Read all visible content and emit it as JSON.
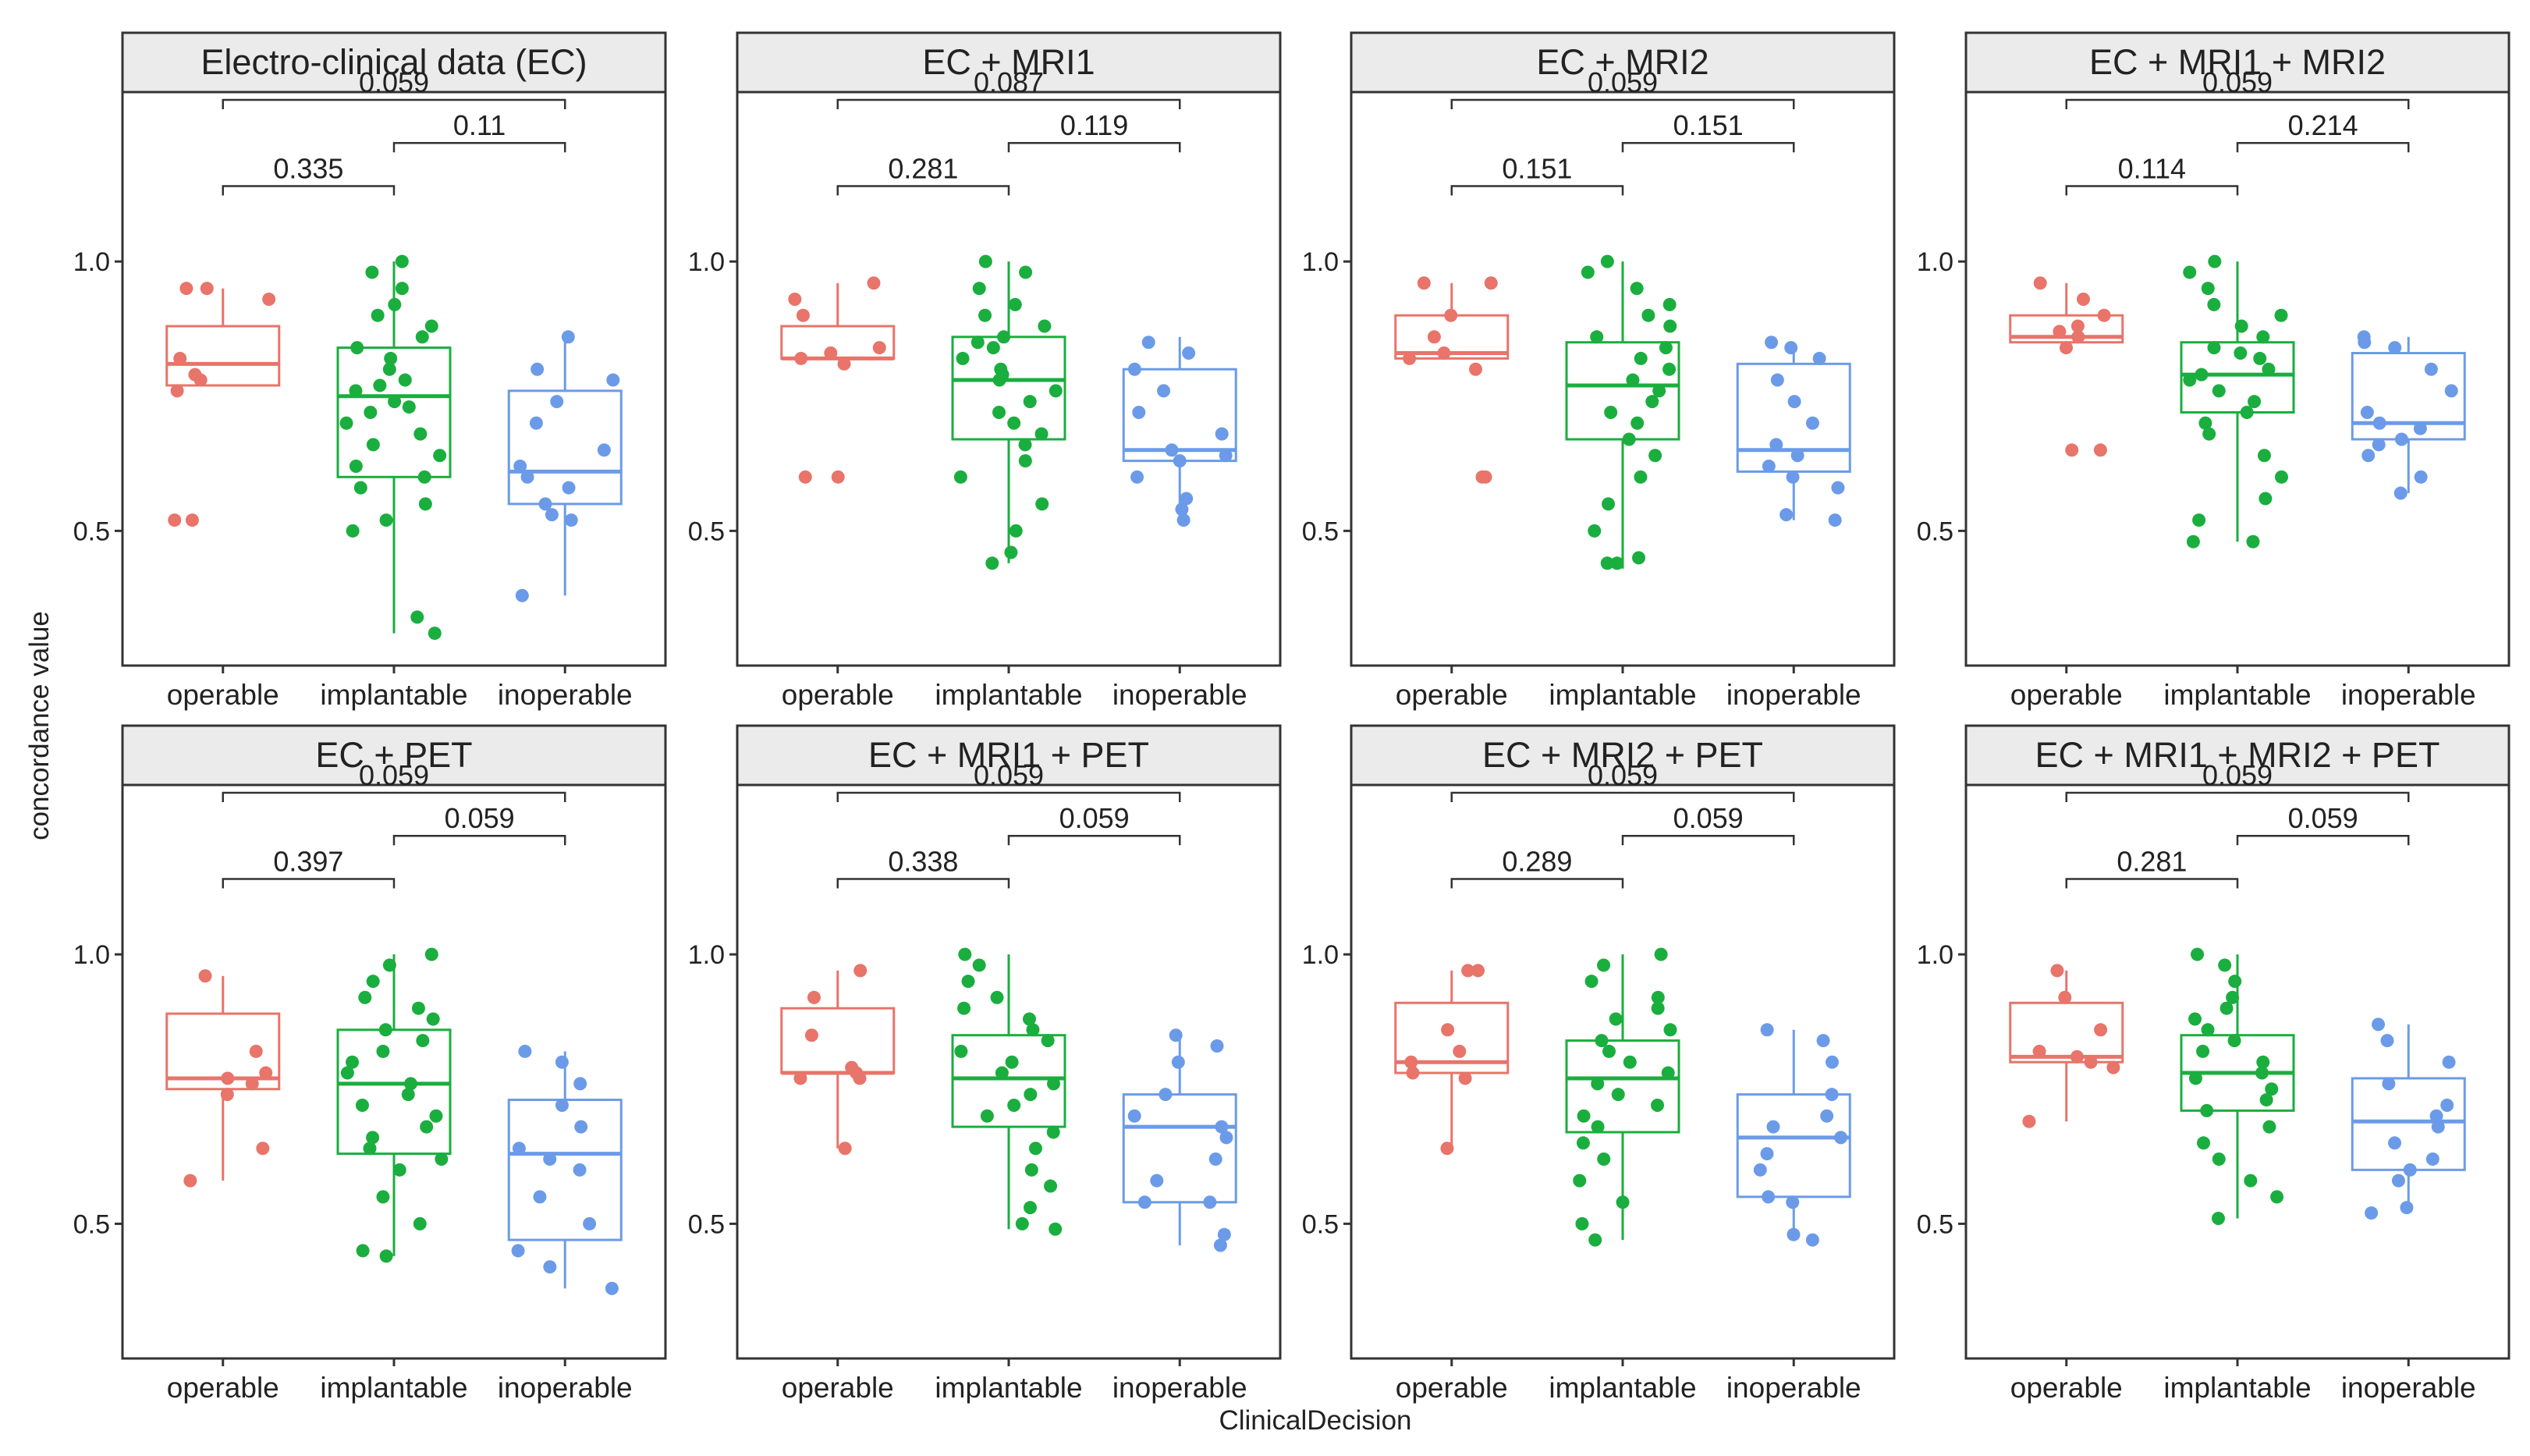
{
  "colors": {
    "operable": "#E8746A",
    "implantable": "#1AAE3E",
    "inoperable": "#6B9BE8",
    "strip_fill": "#EBEBEB",
    "frame": "#333333"
  },
  "chart_data": {
    "type": "box",
    "xlabel": "ClinicalDecision",
    "ylabel": "concordance value",
    "ylim": [
      0.25,
      1.3
    ],
    "yticks": [
      0.5,
      1.0
    ],
    "ytick_labels": [
      "0.5",
      "1.0"
    ],
    "categories": [
      "operable",
      "implantable",
      "inoperable"
    ],
    "comparisons": [
      {
        "from": "operable",
        "to": "implantable"
      },
      {
        "from": "implantable",
        "to": "inoperable"
      },
      {
        "from": "operable",
        "to": "inoperable"
      }
    ],
    "panels": [
      {
        "title": "Electro-clinical data (EC)",
        "pvalues": [
          "0.335",
          "0.11",
          "0.059"
        ],
        "boxes": [
          {
            "category": "operable",
            "min": 0.77,
            "q1": 0.77,
            "median": 0.81,
            "q3": 0.88,
            "max": 0.95,
            "points": [
              0.52,
              0.52,
              0.76,
              0.78,
              0.79,
              0.82,
              0.93,
              0.95,
              0.95
            ]
          },
          {
            "category": "implantable",
            "min": 0.31,
            "q1": 0.6,
            "median": 0.75,
            "q3": 0.84,
            "max": 1.0,
            "points": [
              0.31,
              0.34,
              0.5,
              0.52,
              0.55,
              0.58,
              0.6,
              0.62,
              0.64,
              0.66,
              0.68,
              0.7,
              0.72,
              0.73,
              0.74,
              0.76,
              0.77,
              0.78,
              0.8,
              0.82,
              0.84,
              0.86,
              0.88,
              0.9,
              0.92,
              0.95,
              0.98,
              1.0
            ]
          },
          {
            "category": "inoperable",
            "min": 0.38,
            "q1": 0.55,
            "median": 0.61,
            "q3": 0.76,
            "max": 0.86,
            "points": [
              0.38,
              0.52,
              0.53,
              0.55,
              0.58,
              0.6,
              0.62,
              0.65,
              0.7,
              0.74,
              0.78,
              0.8,
              0.86
            ]
          }
        ]
      },
      {
        "title": "EC + MRI1",
        "pvalues": [
          "0.281",
          "0.119",
          "0.087"
        ],
        "boxes": [
          {
            "category": "operable",
            "min": 0.82,
            "q1": 0.82,
            "median": 0.82,
            "q3": 0.88,
            "max": 0.96,
            "points": [
              0.6,
              0.6,
              0.81,
              0.82,
              0.83,
              0.84,
              0.9,
              0.93,
              0.96
            ]
          },
          {
            "category": "implantable",
            "min": 0.44,
            "q1": 0.67,
            "median": 0.78,
            "q3": 0.86,
            "max": 1.0,
            "points": [
              0.44,
              0.46,
              0.5,
              0.55,
              0.6,
              0.63,
              0.66,
              0.68,
              0.7,
              0.72,
              0.74,
              0.76,
              0.78,
              0.79,
              0.8,
              0.82,
              0.84,
              0.85,
              0.86,
              0.88,
              0.9,
              0.92,
              0.95,
              0.98,
              1.0
            ]
          },
          {
            "category": "inoperable",
            "min": 0.52,
            "q1": 0.63,
            "median": 0.65,
            "q3": 0.8,
            "max": 0.86,
            "points": [
              0.52,
              0.54,
              0.56,
              0.6,
              0.63,
              0.64,
              0.65,
              0.68,
              0.72,
              0.76,
              0.8,
              0.83,
              0.85
            ]
          }
        ]
      },
      {
        "title": "EC + MRI2",
        "pvalues": [
          "0.151",
          "0.151",
          "0.059"
        ],
        "boxes": [
          {
            "category": "operable",
            "min": 0.82,
            "q1": 0.82,
            "median": 0.83,
            "q3": 0.9,
            "max": 0.96,
            "points": [
              0.6,
              0.6,
              0.8,
              0.82,
              0.83,
              0.86,
              0.9,
              0.96,
              0.96
            ]
          },
          {
            "category": "implantable",
            "min": 0.43,
            "q1": 0.67,
            "median": 0.77,
            "q3": 0.85,
            "max": 1.0,
            "points": [
              0.44,
              0.44,
              0.45,
              0.5,
              0.55,
              0.6,
              0.64,
              0.67,
              0.7,
              0.72,
              0.74,
              0.76,
              0.78,
              0.8,
              0.82,
              0.84,
              0.86,
              0.88,
              0.9,
              0.92,
              0.95,
              0.98,
              1.0
            ]
          },
          {
            "category": "inoperable",
            "min": 0.52,
            "q1": 0.61,
            "median": 0.65,
            "q3": 0.81,
            "max": 0.85,
            "points": [
              0.52,
              0.53,
              0.58,
              0.6,
              0.62,
              0.64,
              0.66,
              0.7,
              0.74,
              0.78,
              0.82,
              0.84,
              0.85
            ]
          }
        ]
      },
      {
        "title": "EC + MRI1 + MRI2",
        "pvalues": [
          "0.114",
          "0.214",
          "0.059"
        ],
        "boxes": [
          {
            "category": "operable",
            "min": 0.85,
            "q1": 0.85,
            "median": 0.86,
            "q3": 0.9,
            "max": 0.96,
            "points": [
              0.65,
              0.65,
              0.84,
              0.86,
              0.87,
              0.88,
              0.9,
              0.93,
              0.96
            ]
          },
          {
            "category": "implantable",
            "min": 0.48,
            "q1": 0.72,
            "median": 0.79,
            "q3": 0.85,
            "max": 1.0,
            "points": [
              0.48,
              0.48,
              0.52,
              0.56,
              0.6,
              0.64,
              0.68,
              0.7,
              0.72,
              0.74,
              0.76,
              0.78,
              0.79,
              0.8,
              0.82,
              0.83,
              0.84,
              0.86,
              0.88,
              0.9,
              0.92,
              0.95,
              0.98,
              1.0
            ]
          },
          {
            "category": "inoperable",
            "min": 0.57,
            "q1": 0.67,
            "median": 0.7,
            "q3": 0.83,
            "max": 0.86,
            "points": [
              0.57,
              0.6,
              0.64,
              0.66,
              0.67,
              0.69,
              0.7,
              0.72,
              0.76,
              0.8,
              0.84,
              0.85,
              0.86
            ]
          }
        ]
      },
      {
        "title": "EC + PET",
        "pvalues": [
          "0.397",
          "0.059",
          "0.059"
        ],
        "boxes": [
          {
            "category": "operable",
            "min": 0.58,
            "q1": 0.75,
            "median": 0.77,
            "q3": 0.89,
            "max": 0.96,
            "points": [
              0.58,
              0.64,
              0.74,
              0.76,
              0.77,
              0.78,
              0.82,
              0.96
            ]
          },
          {
            "category": "implantable",
            "min": 0.44,
            "q1": 0.63,
            "median": 0.76,
            "q3": 0.86,
            "max": 1.0,
            "points": [
              0.44,
              0.45,
              0.5,
              0.55,
              0.6,
              0.62,
              0.64,
              0.66,
              0.68,
              0.7,
              0.72,
              0.74,
              0.76,
              0.78,
              0.8,
              0.82,
              0.84,
              0.86,
              0.88,
              0.9,
              0.92,
              0.95,
              0.98,
              1.0
            ]
          },
          {
            "category": "inoperable",
            "min": 0.38,
            "q1": 0.47,
            "median": 0.63,
            "q3": 0.73,
            "max": 0.82,
            "points": [
              0.38,
              0.42,
              0.45,
              0.5,
              0.55,
              0.6,
              0.62,
              0.64,
              0.68,
              0.72,
              0.76,
              0.8,
              0.82
            ]
          }
        ]
      },
      {
        "title": "EC + MRI1 + PET",
        "pvalues": [
          "0.338",
          "0.059",
          "0.059"
        ],
        "boxes": [
          {
            "category": "operable",
            "min": 0.64,
            "q1": 0.78,
            "median": 0.78,
            "q3": 0.9,
            "max": 0.97,
            "points": [
              0.64,
              0.77,
              0.77,
              0.78,
              0.79,
              0.85,
              0.92,
              0.97
            ]
          },
          {
            "category": "implantable",
            "min": 0.49,
            "q1": 0.68,
            "median": 0.77,
            "q3": 0.85,
            "max": 1.0,
            "points": [
              0.49,
              0.5,
              0.53,
              0.57,
              0.6,
              0.64,
              0.67,
              0.7,
              0.72,
              0.74,
              0.76,
              0.78,
              0.8,
              0.82,
              0.84,
              0.86,
              0.88,
              0.9,
              0.92,
              0.95,
              0.98,
              1.0
            ]
          },
          {
            "category": "inoperable",
            "min": 0.46,
            "q1": 0.54,
            "median": 0.68,
            "q3": 0.74,
            "max": 0.85,
            "points": [
              0.46,
              0.48,
              0.54,
              0.54,
              0.58,
              0.62,
              0.66,
              0.68,
              0.7,
              0.74,
              0.8,
              0.83,
              0.85
            ]
          }
        ]
      },
      {
        "title": "EC + MRI2 + PET",
        "pvalues": [
          "0.289",
          "0.059",
          "0.059"
        ],
        "boxes": [
          {
            "category": "operable",
            "min": 0.64,
            "q1": 0.78,
            "median": 0.8,
            "q3": 0.91,
            "max": 0.97,
            "points": [
              0.64,
              0.77,
              0.78,
              0.8,
              0.82,
              0.86,
              0.97,
              0.97
            ]
          },
          {
            "category": "implantable",
            "min": 0.47,
            "q1": 0.67,
            "median": 0.77,
            "q3": 0.84,
            "max": 1.0,
            "points": [
              0.47,
              0.5,
              0.54,
              0.58,
              0.62,
              0.65,
              0.68,
              0.7,
              0.72,
              0.74,
              0.76,
              0.78,
              0.8,
              0.82,
              0.84,
              0.86,
              0.88,
              0.9,
              0.92,
              0.95,
              0.98,
              1.0
            ]
          },
          {
            "category": "inoperable",
            "min": 0.47,
            "q1": 0.55,
            "median": 0.66,
            "q3": 0.74,
            "max": 0.86,
            "points": [
              0.47,
              0.48,
              0.54,
              0.55,
              0.6,
              0.63,
              0.66,
              0.68,
              0.7,
              0.74,
              0.8,
              0.84,
              0.86
            ]
          }
        ]
      },
      {
        "title": "EC + MRI1 + MRI2 + PET",
        "pvalues": [
          "0.281",
          "0.059",
          "0.059"
        ],
        "boxes": [
          {
            "category": "operable",
            "min": 0.69,
            "q1": 0.8,
            "median": 0.81,
            "q3": 0.91,
            "max": 0.97,
            "points": [
              0.69,
              0.79,
              0.8,
              0.81,
              0.82,
              0.86,
              0.92,
              0.97
            ]
          },
          {
            "category": "implantable",
            "min": 0.51,
            "q1": 0.71,
            "median": 0.78,
            "q3": 0.85,
            "max": 1.0,
            "points": [
              0.51,
              0.55,
              0.58,
              0.62,
              0.65,
              0.68,
              0.71,
              0.73,
              0.75,
              0.77,
              0.78,
              0.8,
              0.82,
              0.84,
              0.86,
              0.88,
              0.9,
              0.92,
              0.95,
              0.98,
              1.0
            ]
          },
          {
            "category": "inoperable",
            "min": 0.52,
            "q1": 0.6,
            "median": 0.69,
            "q3": 0.77,
            "max": 0.87,
            "points": [
              0.52,
              0.53,
              0.58,
              0.6,
              0.62,
              0.65,
              0.68,
              0.7,
              0.72,
              0.76,
              0.8,
              0.84,
              0.87
            ]
          }
        ]
      }
    ]
  }
}
